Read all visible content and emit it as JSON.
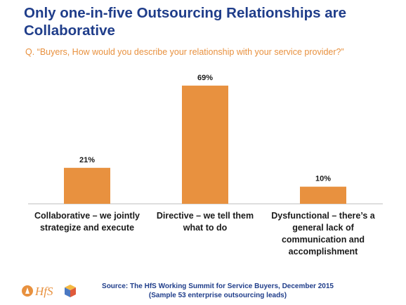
{
  "slide": {
    "title_line1": "Only one-in-five Outsourcing Relationships are",
    "title_line2": "Collaborative",
    "question": "Q. “Buyers, How would you describe your relationship with your service provider?”",
    "source_line1": "Source:  The HfS Working Summit for Service Buyers, December 2015",
    "source_line2": "(Sample 53 enterprise outsourcing leads)",
    "logo_text": "HfS"
  },
  "colors": {
    "title": "#1f3d8a",
    "question": "#e8913f",
    "bar": "#e8913f",
    "axis": "#bdbdbd"
  },
  "chart_data": {
    "type": "bar",
    "title": "",
    "xlabel": "",
    "ylabel": "",
    "ylim": [
      0,
      80
    ],
    "grid": false,
    "legend": "none",
    "categories": [
      [
        "Collaborative – we jointly",
        "strategize and execute"
      ],
      [
        "Directive – we tell them",
        "what to do"
      ],
      [
        "Dysfunctional – there’s a",
        "general lack of",
        "communication and",
        "accomplishment"
      ]
    ],
    "values": [
      21,
      69,
      10
    ],
    "data_labels": [
      "21%",
      "69%",
      "10%"
    ]
  }
}
